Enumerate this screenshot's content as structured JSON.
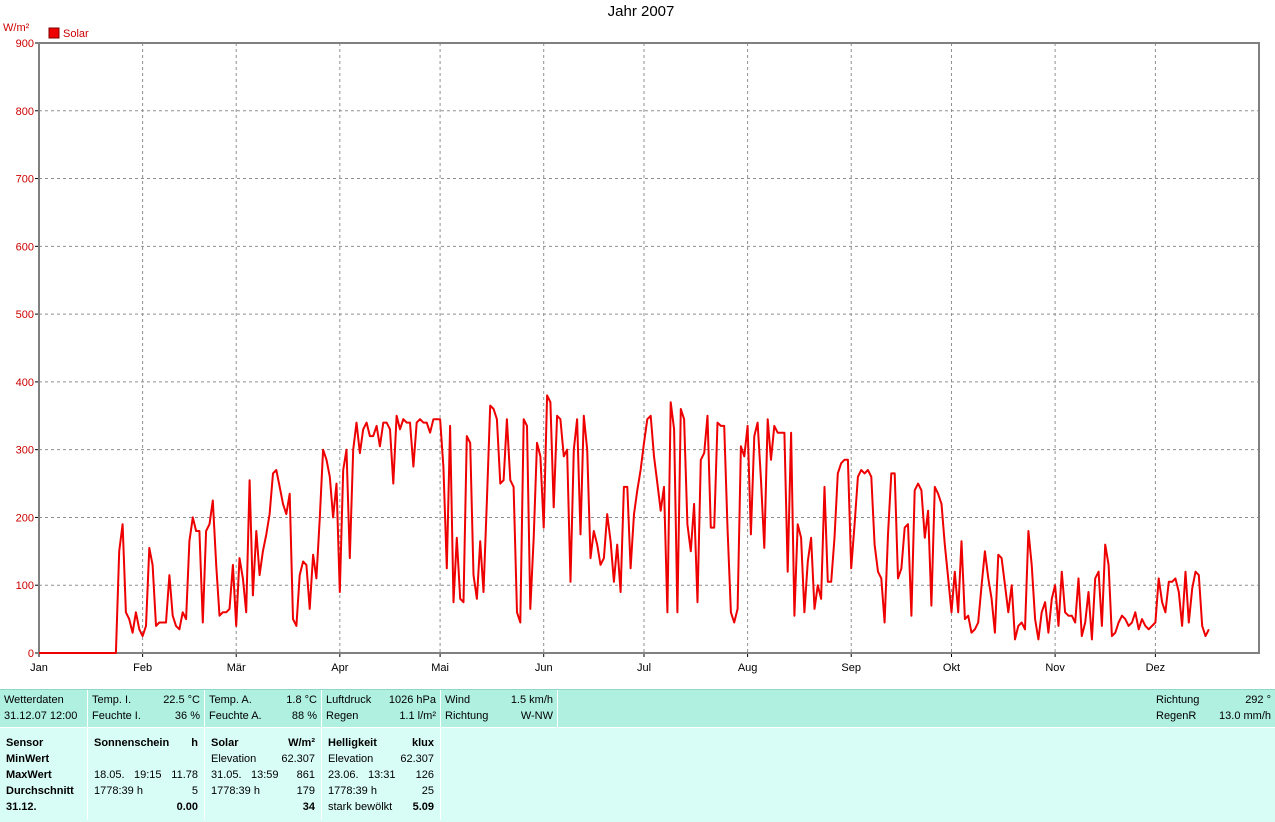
{
  "chart_data": {
    "type": "line",
    "title": "Jahr 2007",
    "ylabel": "W/m²",
    "ylim": [
      0,
      900
    ],
    "yticks": [
      0,
      100,
      200,
      300,
      400,
      500,
      600,
      700,
      800,
      900
    ],
    "xlim": [
      0,
      365
    ],
    "xtick_positions": [
      0,
      31,
      59,
      90,
      120,
      151,
      181,
      212,
      243,
      273,
      304,
      334
    ],
    "xtick_labels": [
      "Jan",
      "Feb",
      "Mär",
      "Apr",
      "Mai",
      "Jun",
      "Jul",
      "Aug",
      "Sep",
      "Okt",
      "Nov",
      "Dez"
    ],
    "grid": true,
    "legend_position": "top-left",
    "series": [
      {
        "name": "Solar",
        "color": "#ee0000",
        "values": [
          0,
          0,
          0,
          0,
          0,
          0,
          0,
          0,
          0,
          0,
          0,
          0,
          0,
          0,
          0,
          0,
          0,
          0,
          0,
          0,
          0,
          0,
          0,
          0,
          150,
          190,
          60,
          50,
          30,
          60,
          35,
          25,
          40,
          155,
          130,
          40,
          45,
          45,
          45,
          115,
          55,
          40,
          35,
          60,
          50,
          165,
          200,
          180,
          180,
          45,
          180,
          190,
          225,
          130,
          55,
          60,
          60,
          65,
          130,
          40,
          140,
          110,
          60,
          255,
          85,
          180,
          115,
          150,
          175,
          205,
          265,
          270,
          245,
          220,
          205,
          235,
          50,
          40,
          115,
          135,
          130,
          65,
          145,
          110,
          200,
          300,
          285,
          260,
          200,
          250,
          90,
          270,
          300,
          140,
          300,
          340,
          295,
          330,
          340,
          320,
          320,
          335,
          305,
          340,
          340,
          330,
          250,
          350,
          330,
          345,
          340,
          340,
          275,
          340,
          345,
          340,
          340,
          325,
          345,
          345,
          345,
          275,
          125,
          335,
          75,
          170,
          80,
          75,
          320,
          310,
          115,
          80,
          165,
          90,
          225,
          365,
          360,
          345,
          250,
          255,
          345,
          255,
          245,
          60,
          45,
          345,
          335,
          65,
          170,
          310,
          290,
          185,
          380,
          370,
          215,
          350,
          345,
          290,
          300,
          105,
          300,
          345,
          175,
          350,
          300,
          140,
          180,
          160,
          130,
          140,
          205,
          165,
          105,
          160,
          90,
          245,
          245,
          125,
          205,
          240,
          270,
          310,
          345,
          350,
          290,
          250,
          210,
          245,
          60,
          370,
          330,
          60,
          360,
          345,
          190,
          150,
          220,
          75,
          285,
          295,
          350,
          185,
          185,
          340,
          335,
          335,
          185,
          60,
          45,
          65,
          305,
          290,
          335,
          175,
          320,
          340,
          255,
          155,
          345,
          285,
          335,
          325,
          325,
          325,
          120,
          325,
          55,
          190,
          170,
          60,
          135,
          170,
          65,
          100,
          80,
          245,
          105,
          105,
          170,
          265,
          280,
          285,
          285,
          125,
          190,
          260,
          270,
          265,
          270,
          260,
          160,
          120,
          110,
          45,
          175,
          265,
          265,
          110,
          125,
          185,
          190,
          55,
          240,
          250,
          240,
          170,
          210,
          70,
          245,
          235,
          220,
          160,
          110,
          60,
          120,
          60,
          165,
          50,
          55,
          30,
          35,
          45,
          100,
          150,
          110,
          80,
          30,
          145,
          140,
          100,
          60,
          100,
          20,
          40,
          45,
          35,
          180,
          130,
          50,
          20,
          60,
          75,
          30,
          80,
          100,
          40,
          120,
          60,
          55,
          55,
          45,
          110,
          25,
          45,
          90,
          20,
          110,
          120,
          40,
          160,
          130,
          25,
          30,
          45,
          55,
          50,
          40,
          45,
          60,
          35,
          50,
          40,
          35,
          40,
          45,
          110,
          75,
          60,
          105,
          105,
          110,
          90,
          40,
          120,
          45,
          95,
          120,
          115,
          40,
          25,
          35
        ]
      }
    ]
  },
  "weather_bar": {
    "wetterdaten": {
      "label": "Wetterdaten",
      "datetime": "31.12.07 12:00"
    },
    "indoor": {
      "temp_label": "Temp. I.",
      "temp_value": "22.5 °C",
      "hum_label": "Feuchte I.",
      "hum_value": "36 %"
    },
    "outdoor": {
      "temp_label": "Temp. A.",
      "temp_value": "1.8 °C",
      "hum_label": "Feuchte A.",
      "hum_value": "88 %"
    },
    "pressure": {
      "label": "Luftdruck",
      "value": "1026 hPa",
      "rain_label": "Regen",
      "rain_value": "1.1 l/m²"
    },
    "wind": {
      "label": "Wind",
      "value": "1.5 km/h",
      "dir_label": "Richtung",
      "dir_value": "W-NW"
    },
    "right": {
      "dir_label": "Richtung",
      "dir_value": "292 °",
      "rainrate_label": "RegenR",
      "rainrate_value": "13.0 mm/h"
    }
  },
  "stats": {
    "labels": [
      "Sensor",
      "MinWert",
      "MaxWert",
      "Durchschnitt",
      "31.12."
    ],
    "sonnenschein": {
      "title": "Sonnenschein",
      "unit": "h",
      "max_date": "18.05.",
      "max_time": "19:15",
      "max_value": "11.78",
      "avg_time": "1778:39 h",
      "avg_value": "5",
      "day_value": "0.00"
    },
    "solar": {
      "title": "Solar",
      "unit": "W/m²",
      "elev_label": "Elevation",
      "elev_value": "62.307",
      "max_date": "31.05.",
      "max_time": "13:59",
      "max_value": "861",
      "avg_time": "1778:39 h",
      "avg_value": "179",
      "day_value": "34"
    },
    "helligkeit": {
      "title": "Helligkeit",
      "unit": "klux",
      "elev_label": "Elevation",
      "elev_value": "62.307",
      "max_date": "23.06.",
      "max_time": "13:31",
      "max_value": "126",
      "avg_time": "1778:39 h",
      "avg_value": "25",
      "day_label": "stark bewölkt",
      "day_value": "5.09"
    }
  }
}
